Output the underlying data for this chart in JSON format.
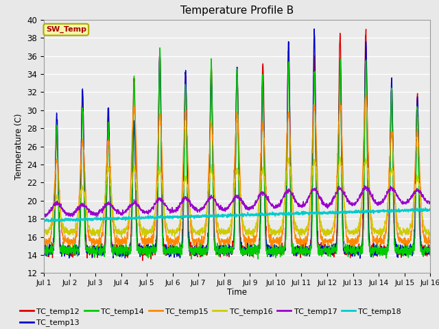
{
  "title": "Temperature Profile B",
  "xlabel": "Time",
  "ylabel": "Temperature (C)",
  "ylim": [
    12,
    40
  ],
  "yticks": [
    12,
    14,
    16,
    18,
    20,
    22,
    24,
    26,
    28,
    30,
    32,
    34,
    36,
    38,
    40
  ],
  "bg_color": "#e8e8e8",
  "plot_bg": "#ebebeb",
  "legend_entries": [
    "TC_temp12",
    "TC_temp13",
    "TC_temp14",
    "TC_temp15",
    "TC_temp16",
    "TC_temp17",
    "TC_temp18"
  ],
  "line_colors": [
    "#dd0000",
    "#0000cc",
    "#00cc00",
    "#ff8800",
    "#cccc00",
    "#9900cc",
    "#00cccc"
  ],
  "sw_temp_label": "SW_Temp",
  "sw_temp_box_facecolor": "#f5f5aa",
  "sw_temp_box_edgecolor": "#aaaa00",
  "sw_temp_text_color": "#aa0000"
}
